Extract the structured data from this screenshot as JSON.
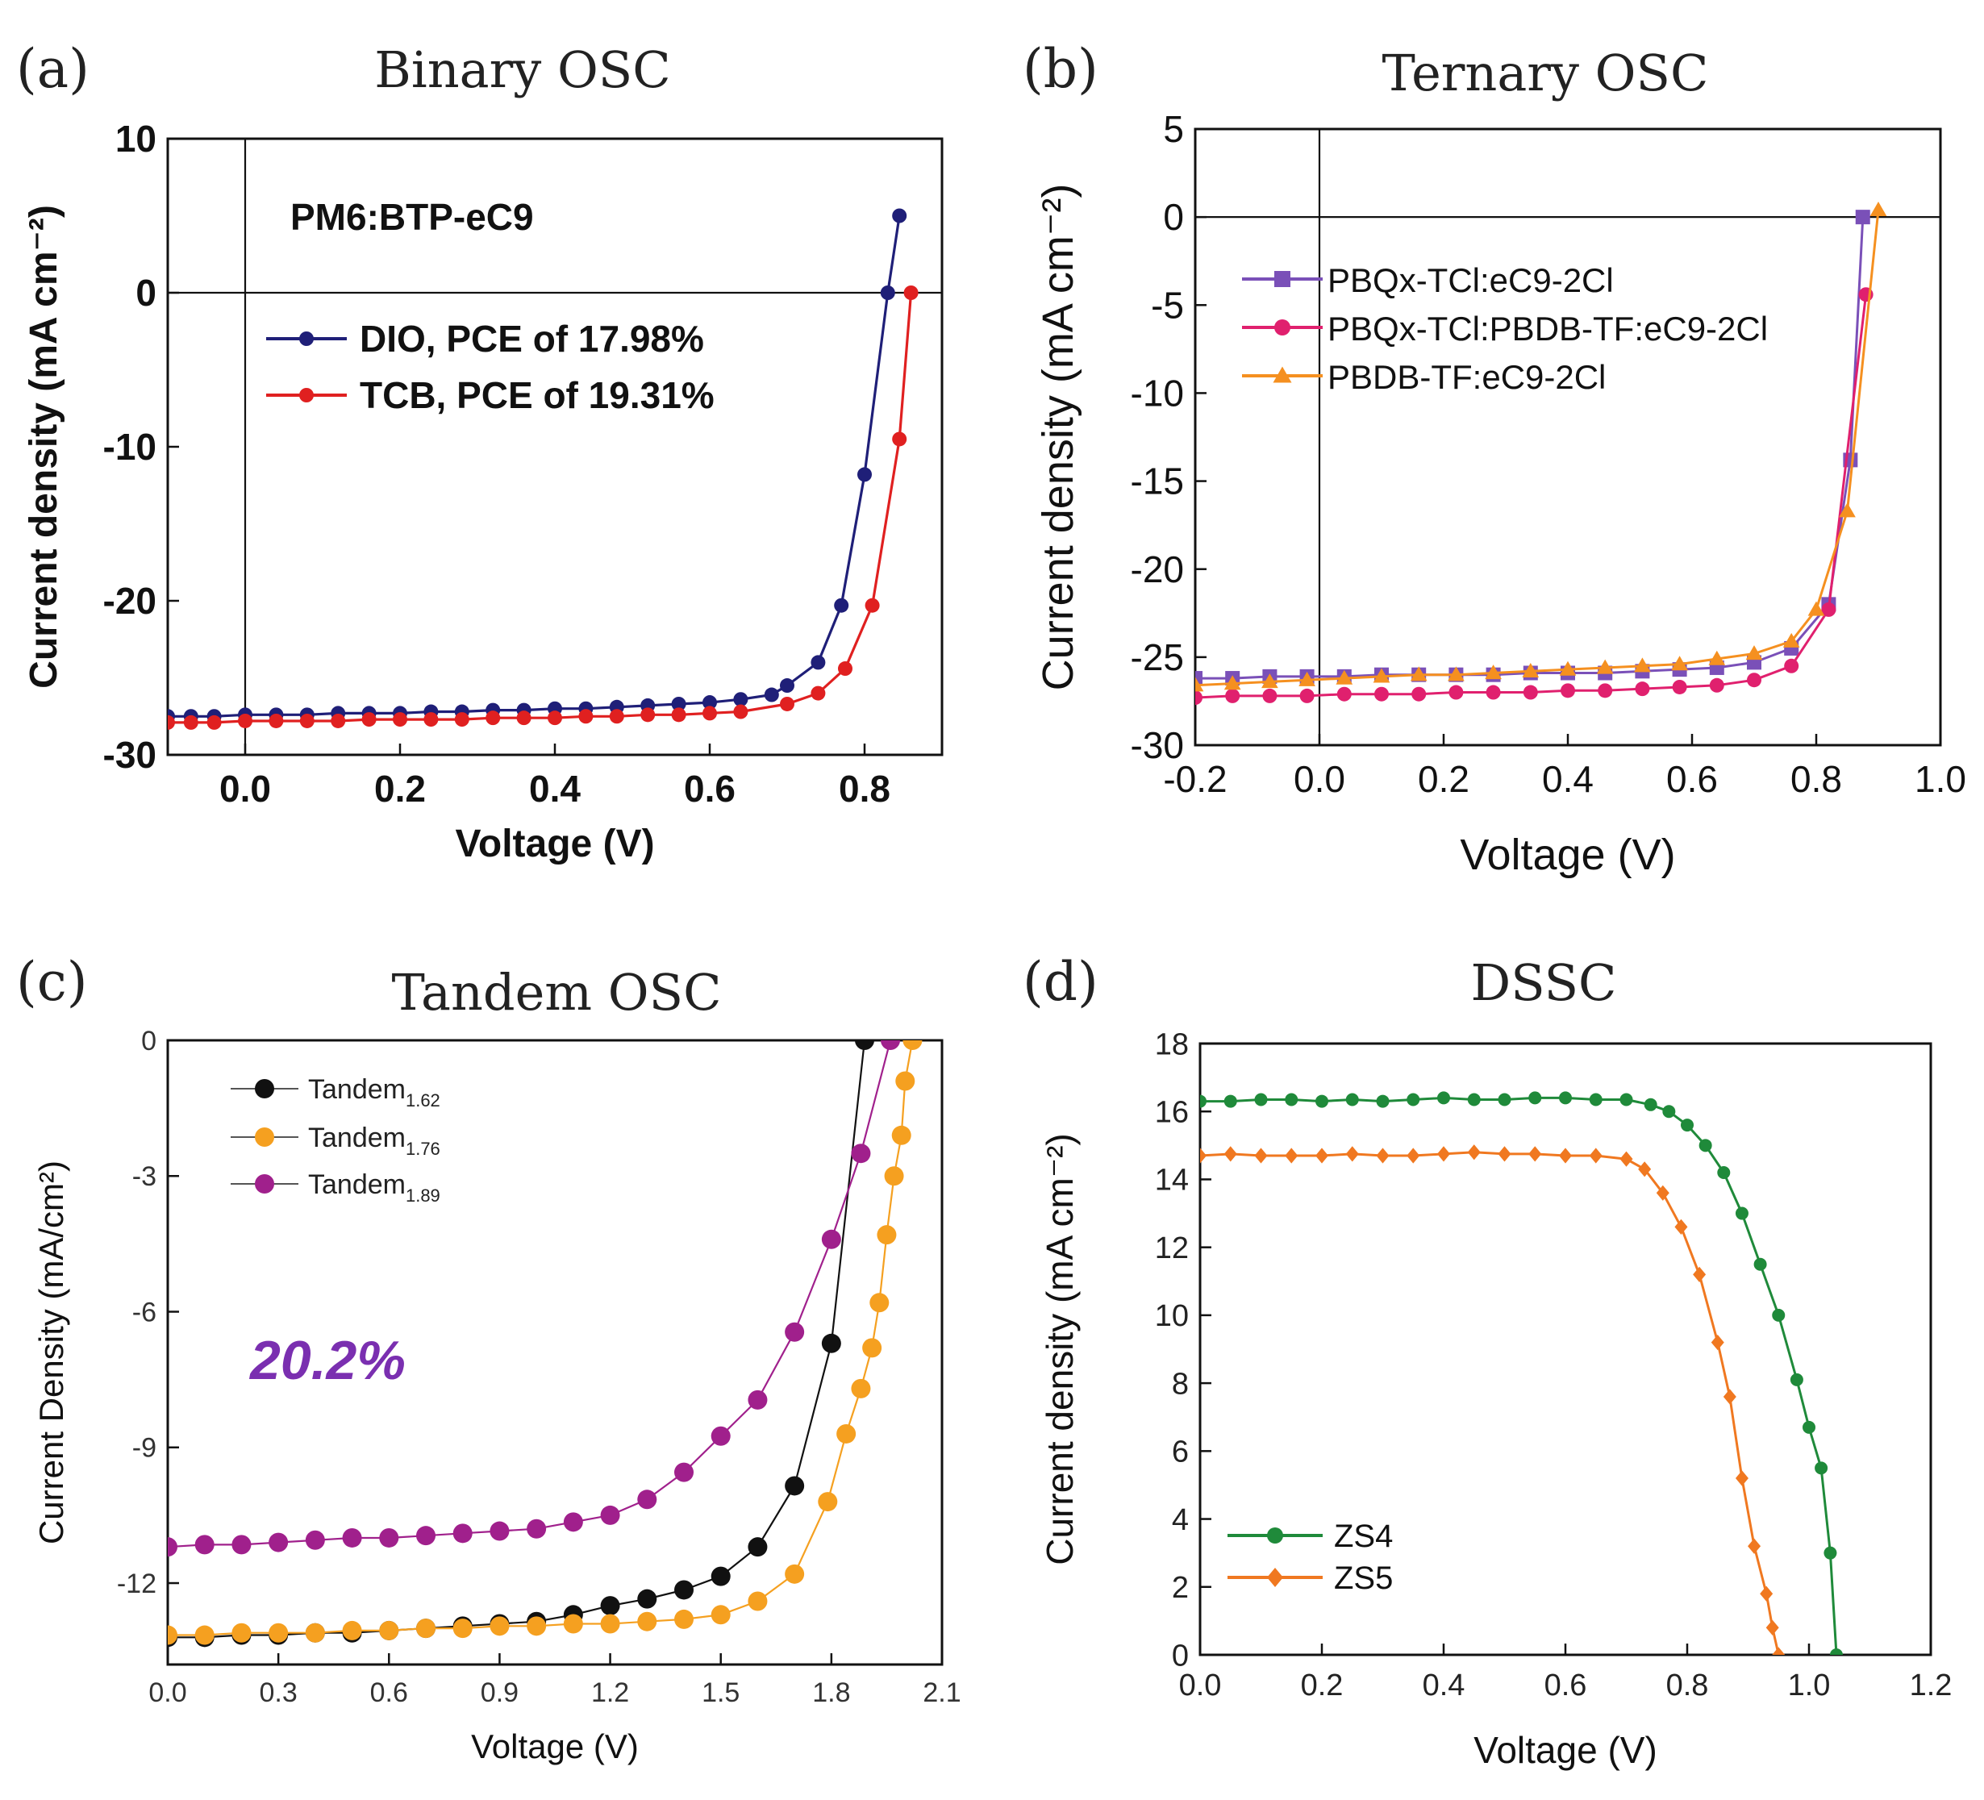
{
  "figure": {
    "panels": [
      {
        "letter": "(a)",
        "title": "Binary OSC"
      },
      {
        "letter": "(b)",
        "title": "Ternary OSC"
      },
      {
        "letter": "(c)",
        "title": "Tandem OSC"
      },
      {
        "letter": "(d)",
        "title": "DSSC"
      }
    ]
  },
  "chart_data": [
    {
      "panel": "(a)",
      "title": "Binary OSC",
      "type": "line",
      "xlabel": "Voltage (V)",
      "ylabel": "Current density (mA cm⁻²)",
      "xlim": [
        -0.1,
        0.9
      ],
      "ylim": [
        -30,
        10
      ],
      "xticks": [
        0.0,
        0.2,
        0.4,
        0.6,
        0.8
      ],
      "xticklabels": [
        "0.0",
        "0.2",
        "0.4",
        "0.6",
        "0.8"
      ],
      "yticks": [
        10,
        0,
        -10,
        -20,
        -30
      ],
      "yticklabels": [
        "10",
        "0",
        "-10",
        "-20",
        "-30"
      ],
      "annotations": [
        "PM6:BTP-eC9"
      ],
      "legend_position": "upper-center",
      "series": [
        {
          "name": "DIO, PCE of 17.98%",
          "color": "#1f1f78",
          "marker": "circle",
          "x": [
            -0.1,
            -0.07,
            -0.04,
            0.0,
            0.04,
            0.08,
            0.12,
            0.16,
            0.2,
            0.24,
            0.28,
            0.32,
            0.36,
            0.4,
            0.44,
            0.48,
            0.52,
            0.56,
            0.6,
            0.64,
            0.68,
            0.7,
            0.74,
            0.77,
            0.8,
            0.83,
            0.845
          ],
          "y": [
            -27.5,
            -27.5,
            -27.5,
            -27.4,
            -27.4,
            -27.4,
            -27.3,
            -27.3,
            -27.3,
            -27.2,
            -27.2,
            -27.1,
            -27.1,
            -27.0,
            -27.0,
            -26.9,
            -26.8,
            -26.7,
            -26.6,
            -26.4,
            -26.1,
            -25.5,
            -24.0,
            -20.3,
            -11.8,
            0.0,
            5.0
          ]
        },
        {
          "name": "TCB, PCE of 19.31%",
          "color": "#e02020",
          "marker": "circle",
          "x": [
            -0.1,
            -0.07,
            -0.04,
            0.0,
            0.04,
            0.08,
            0.12,
            0.16,
            0.2,
            0.24,
            0.28,
            0.32,
            0.36,
            0.4,
            0.44,
            0.48,
            0.52,
            0.56,
            0.6,
            0.64,
            0.7,
            0.74,
            0.775,
            0.81,
            0.845,
            0.86
          ],
          "y": [
            -27.9,
            -27.9,
            -27.9,
            -27.8,
            -27.8,
            -27.8,
            -27.8,
            -27.7,
            -27.7,
            -27.7,
            -27.7,
            -27.6,
            -27.6,
            -27.6,
            -27.5,
            -27.5,
            -27.4,
            -27.4,
            -27.3,
            -27.2,
            -26.7,
            -26.0,
            -24.4,
            -20.3,
            -9.5,
            0.0
          ]
        }
      ]
    },
    {
      "panel": "(b)",
      "title": "Ternary OSC",
      "type": "line",
      "xlabel": "Voltage (V)",
      "ylabel": "Current density (mA cm⁻²)",
      "xlim": [
        -0.2,
        1.0
      ],
      "ylim": [
        -30,
        5
      ],
      "xticks": [
        -0.2,
        0.0,
        0.2,
        0.4,
        0.6,
        0.8,
        1.0
      ],
      "xticklabels": [
        "-0.2",
        "0.0",
        "0.2",
        "0.4",
        "0.6",
        "0.8",
        "1.0"
      ],
      "yticks": [
        5,
        0,
        -5,
        -10,
        -15,
        -20,
        -25,
        -30
      ],
      "yticklabels": [
        "5",
        "0",
        "-5",
        "-10",
        "-15",
        "-20",
        "-25",
        "-30"
      ],
      "legend_position": "upper-left",
      "series": [
        {
          "name": "PBQx-TCl:eC9-2Cl",
          "color": "#7a50b8",
          "marker": "square",
          "x": [
            -0.2,
            -0.14,
            -0.08,
            -0.02,
            0.04,
            0.1,
            0.16,
            0.22,
            0.28,
            0.34,
            0.4,
            0.46,
            0.52,
            0.58,
            0.64,
            0.7,
            0.76,
            0.82,
            0.855,
            0.875
          ],
          "y": [
            -26.2,
            -26.2,
            -26.1,
            -26.1,
            -26.1,
            -26.0,
            -26.0,
            -26.0,
            -26.0,
            -25.9,
            -25.9,
            -25.9,
            -25.8,
            -25.7,
            -25.6,
            -25.3,
            -24.5,
            -22.0,
            -13.8,
            0.0
          ]
        },
        {
          "name": "PBQx-TCl:PBDB-TF:eC9-2Cl",
          "color": "#e0206e",
          "marker": "circle",
          "x": [
            -0.2,
            -0.14,
            -0.08,
            -0.02,
            0.04,
            0.1,
            0.16,
            0.22,
            0.28,
            0.34,
            0.4,
            0.46,
            0.52,
            0.58,
            0.64,
            0.7,
            0.76,
            0.82,
            0.88
          ],
          "y": [
            -27.3,
            -27.2,
            -27.2,
            -27.2,
            -27.1,
            -27.1,
            -27.1,
            -27.0,
            -27.0,
            -27.0,
            -26.9,
            -26.9,
            -26.8,
            -26.7,
            -26.6,
            -26.3,
            -25.5,
            -22.3,
            -4.4
          ]
        },
        {
          "name": "PBDB-TF:eC9-2Cl",
          "color": "#f59020",
          "marker": "triangle",
          "x": [
            -0.2,
            -0.14,
            -0.08,
            -0.02,
            0.04,
            0.1,
            0.16,
            0.22,
            0.28,
            0.34,
            0.4,
            0.46,
            0.52,
            0.58,
            0.64,
            0.7,
            0.76,
            0.8,
            0.85,
            0.9
          ],
          "y": [
            -26.6,
            -26.5,
            -26.4,
            -26.3,
            -26.2,
            -26.1,
            -26.0,
            -26.0,
            -25.9,
            -25.8,
            -25.7,
            -25.6,
            -25.5,
            -25.4,
            -25.1,
            -24.8,
            -24.1,
            -22.3,
            -16.7,
            0.4
          ]
        }
      ]
    },
    {
      "panel": "(c)",
      "title": "Tandem OSC",
      "type": "line",
      "xlabel": "Voltage (V)",
      "ylabel": "Current Density (mA/cm²)",
      "xlim": [
        0.0,
        2.1
      ],
      "ylim": [
        -13.8,
        0
      ],
      "xticks": [
        0.0,
        0.3,
        0.6,
        0.9,
        1.2,
        1.5,
        1.8,
        2.1
      ],
      "xticklabels": [
        "0.0",
        "0.3",
        "0.6",
        "0.9",
        "1.2",
        "1.5",
        "1.8",
        "2.1"
      ],
      "yticks": [
        0,
        -3,
        -6,
        -9,
        -12
      ],
      "yticklabels": [
        "0",
        "-3",
        "-6",
        "-9",
        "-12"
      ],
      "annotations": [
        "20.2%"
      ],
      "legend_position": "upper-left",
      "series": [
        {
          "name": "Tandem",
          "subscript": "1.62",
          "color": "#111111",
          "marker": "circle",
          "x": [
            0.0,
            0.1,
            0.2,
            0.3,
            0.4,
            0.5,
            0.6,
            0.7,
            0.8,
            0.9,
            1.0,
            1.1,
            1.2,
            1.3,
            1.4,
            1.5,
            1.6,
            1.7,
            1.8,
            1.89
          ],
          "y": [
            -13.2,
            -13.2,
            -13.15,
            -13.15,
            -13.1,
            -13.1,
            -13.05,
            -13.0,
            -12.95,
            -12.9,
            -12.85,
            -12.7,
            -12.5,
            -12.35,
            -12.15,
            -11.85,
            -11.2,
            -9.85,
            -6.7,
            0.0
          ]
        },
        {
          "name": "Tandem",
          "subscript": "1.76",
          "color": "#f5a020",
          "marker": "circle",
          "x": [
            0.0,
            0.1,
            0.2,
            0.3,
            0.4,
            0.5,
            0.6,
            0.7,
            0.8,
            0.9,
            1.0,
            1.1,
            1.2,
            1.3,
            1.4,
            1.5,
            1.6,
            1.7,
            1.79,
            1.84,
            1.88,
            1.91,
            1.93,
            1.95,
            1.97,
            1.99,
            2.0,
            2.02
          ],
          "y": [
            -13.15,
            -13.15,
            -13.1,
            -13.1,
            -13.1,
            -13.05,
            -13.05,
            -13.0,
            -13.0,
            -12.95,
            -12.95,
            -12.9,
            -12.9,
            -12.85,
            -12.8,
            -12.7,
            -12.4,
            -11.8,
            -10.2,
            -8.7,
            -7.7,
            -6.8,
            -5.8,
            -4.3,
            -3.0,
            -2.1,
            -0.9,
            0.0
          ]
        },
        {
          "name": "Tandem",
          "subscript": "1.89",
          "color": "#a0208c",
          "marker": "circle",
          "x": [
            0.0,
            0.1,
            0.2,
            0.3,
            0.4,
            0.5,
            0.6,
            0.7,
            0.8,
            0.9,
            1.0,
            1.1,
            1.2,
            1.3,
            1.4,
            1.5,
            1.6,
            1.7,
            1.8,
            1.88,
            1.96
          ],
          "y": [
            -11.2,
            -11.15,
            -11.15,
            -11.1,
            -11.05,
            -11.0,
            -11.0,
            -10.95,
            -10.9,
            -10.85,
            -10.8,
            -10.65,
            -10.5,
            -10.15,
            -9.55,
            -8.75,
            -7.95,
            -6.45,
            -4.4,
            -2.5,
            0.0
          ]
        }
      ]
    },
    {
      "panel": "(d)",
      "title": "DSSC",
      "type": "line",
      "xlabel": "Voltage (V)",
      "ylabel": "Current density (mA cm⁻²)",
      "xlim": [
        0.0,
        1.2
      ],
      "ylim": [
        0,
        18
      ],
      "xticks": [
        0.0,
        0.2,
        0.4,
        0.6,
        0.8,
        1.0,
        1.2
      ],
      "xticklabels": [
        "0.0",
        "0.2",
        "0.4",
        "0.6",
        "0.8",
        "1.0",
        "1.2"
      ],
      "yticks": [
        0,
        2,
        4,
        6,
        8,
        10,
        12,
        14,
        16,
        18
      ],
      "yticklabels": [
        "0",
        "2",
        "4",
        "6",
        "8",
        "10",
        "12",
        "14",
        "16",
        "18"
      ],
      "legend_position": "lower-left",
      "series": [
        {
          "name": "ZS4",
          "color": "#1f8a3a",
          "marker": "circle",
          "x": [
            0.0,
            0.05,
            0.1,
            0.15,
            0.2,
            0.25,
            0.3,
            0.35,
            0.4,
            0.45,
            0.5,
            0.55,
            0.6,
            0.65,
            0.7,
            0.74,
            0.77,
            0.8,
            0.83,
            0.86,
            0.89,
            0.92,
            0.95,
            0.98,
            1.0,
            1.02,
            1.035,
            1.045
          ],
          "y": [
            16.3,
            16.3,
            16.35,
            16.35,
            16.3,
            16.35,
            16.3,
            16.35,
            16.4,
            16.35,
            16.35,
            16.4,
            16.4,
            16.35,
            16.35,
            16.2,
            16.0,
            15.6,
            15.0,
            14.2,
            13.0,
            11.5,
            10.0,
            8.1,
            6.7,
            5.5,
            3.0,
            0.0
          ]
        },
        {
          "name": "ZS5",
          "color": "#f07820",
          "marker": "diamond",
          "x": [
            0.0,
            0.05,
            0.1,
            0.15,
            0.2,
            0.25,
            0.3,
            0.35,
            0.4,
            0.45,
            0.5,
            0.55,
            0.6,
            0.65,
            0.7,
            0.73,
            0.76,
            0.79,
            0.82,
            0.85,
            0.87,
            0.89,
            0.91,
            0.93,
            0.94,
            0.95
          ],
          "y": [
            14.7,
            14.75,
            14.7,
            14.7,
            14.7,
            14.75,
            14.7,
            14.7,
            14.75,
            14.8,
            14.75,
            14.75,
            14.7,
            14.7,
            14.6,
            14.3,
            13.6,
            12.6,
            11.2,
            9.2,
            7.6,
            5.2,
            3.2,
            1.8,
            0.8,
            0.0
          ]
        }
      ]
    }
  ]
}
